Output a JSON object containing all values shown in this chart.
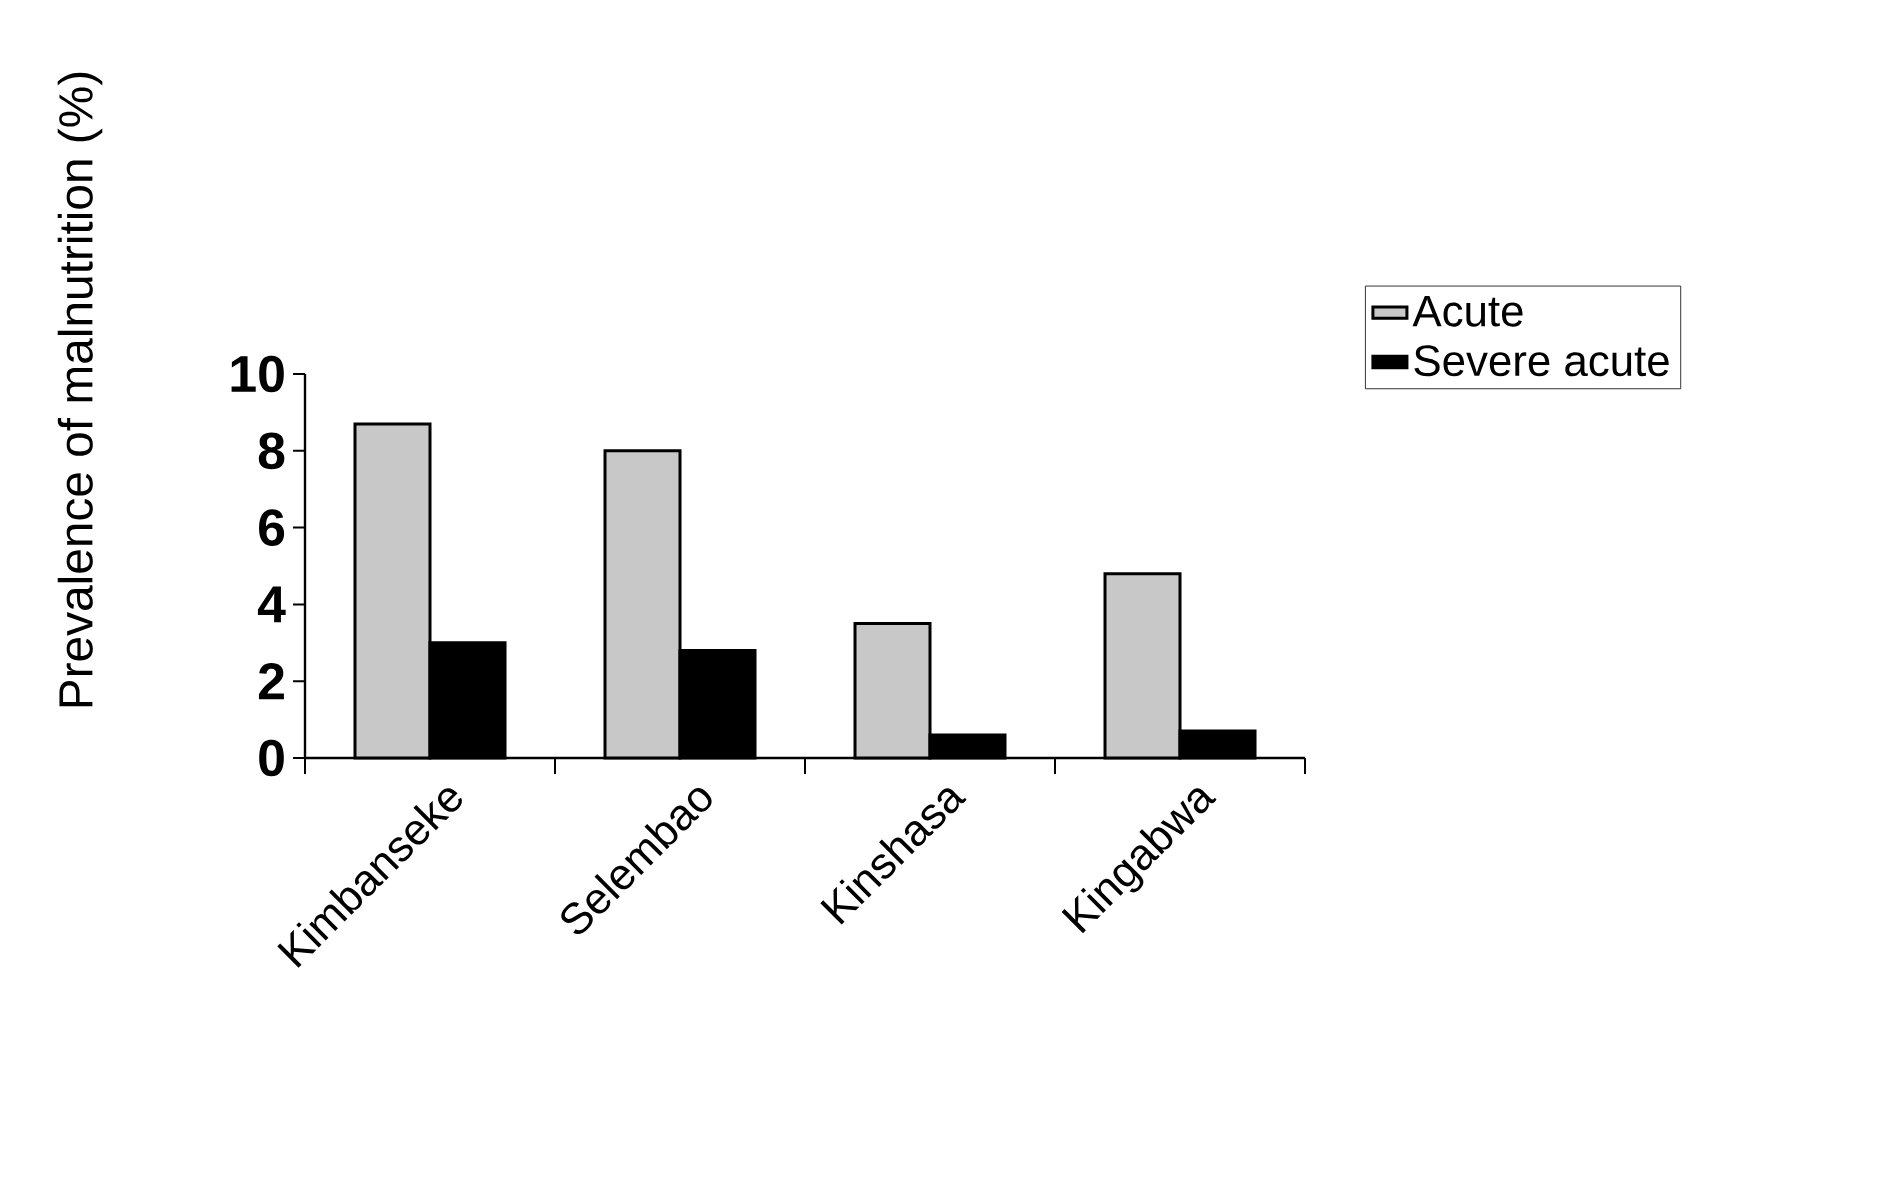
{
  "chart_data": {
    "type": "bar",
    "ylabel": "Prevalence of malnutrition (%)",
    "categories": [
      "Kimbanseke",
      "Selembao",
      "Kinshasa",
      "Kingabwa"
    ],
    "series": [
      {
        "name": "Acute",
        "color": "#c8c8c8",
        "values": [
          8.7,
          8.0,
          3.5,
          4.8
        ]
      },
      {
        "name": "Severe acute",
        "color": "#000000",
        "values": [
          3.0,
          2.8,
          0.6,
          0.7
        ]
      }
    ],
    "ylim": [
      0,
      10
    ],
    "yticks": [
      0,
      2,
      4,
      6,
      8,
      10
    ],
    "grid": false,
    "legend": "top right"
  }
}
